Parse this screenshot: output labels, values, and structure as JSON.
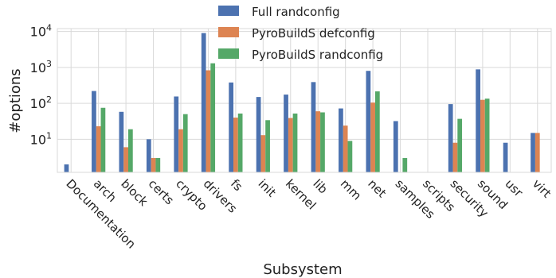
{
  "colors": {
    "full_randconfig": "#4c72b0",
    "pyrobuilds_defconfig": "#dd8452",
    "pyrobuilds_randconfig": "#55a868",
    "grid": "#d9d9d9"
  },
  "chart_data": {
    "type": "bar",
    "y_scale": "log",
    "ylim": [
      1.2,
      12000
    ],
    "yticks": [
      {
        "value": 10,
        "base": "10",
        "exp": "1"
      },
      {
        "value": 100,
        "base": "10",
        "exp": "2"
      },
      {
        "value": 1000,
        "base": "10",
        "exp": "3"
      },
      {
        "value": 10000,
        "base": "10",
        "exp": "4"
      }
    ],
    "xlabel": "Subsystem",
    "ylabel": "#options",
    "grid": true,
    "legend_position": "top-center",
    "categories": [
      "Documentation",
      "arch",
      "block",
      "certs",
      "crypto",
      "drivers",
      "fs",
      "init",
      "kernel",
      "lib",
      "mm",
      "net",
      "samples",
      "scripts",
      "security",
      "sound",
      "usr",
      "virt"
    ],
    "series": [
      {
        "name": "Full randconfig",
        "color_key": "full_randconfig",
        "values": [
          2,
          220,
          58,
          10,
          155,
          9000,
          380,
          150,
          175,
          390,
          72,
          800,
          32,
          null,
          95,
          880,
          8,
          15
        ]
      },
      {
        "name": "PyroBuildS defconfig",
        "color_key": "pyrobuilds_defconfig",
        "values": [
          null,
          23,
          6,
          3,
          19,
          830,
          40,
          13,
          39,
          60,
          24,
          105,
          null,
          null,
          8,
          125,
          null,
          15
        ]
      },
      {
        "name": "PyroBuildS randconfig",
        "color_key": "pyrobuilds_randconfig",
        "values": [
          null,
          75,
          19,
          3,
          50,
          1300,
          52,
          34,
          52,
          56,
          9,
          215,
          3,
          null,
          37,
          135,
          null,
          null
        ]
      }
    ]
  }
}
